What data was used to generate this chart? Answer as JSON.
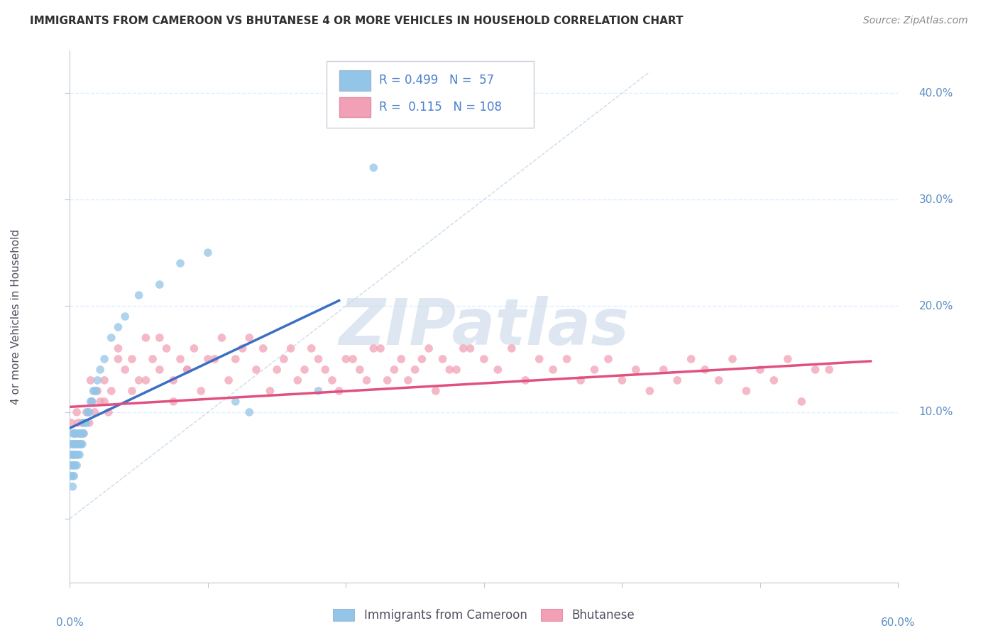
{
  "title": "IMMIGRANTS FROM CAMEROON VS BHUTANESE 4 OR MORE VEHICLES IN HOUSEHOLD CORRELATION CHART",
  "source": "Source: ZipAtlas.com",
  "ylabel_label": "4 or more Vehicles in Household",
  "xlim": [
    0.0,
    0.6
  ],
  "ylim": [
    -0.06,
    0.44
  ],
  "color_blue": "#92C5E8",
  "color_pink": "#F2A0B5",
  "color_blue_line": "#3B6FC4",
  "color_pink_line": "#E05080",
  "color_title": "#303030",
  "color_source": "#888888",
  "color_watermark": "#C8D8E8",
  "blue_scatter_x": [
    0.001,
    0.001,
    0.001,
    0.001,
    0.002,
    0.002,
    0.002,
    0.002,
    0.002,
    0.002,
    0.003,
    0.003,
    0.003,
    0.003,
    0.003,
    0.004,
    0.004,
    0.004,
    0.004,
    0.005,
    0.005,
    0.005,
    0.005,
    0.006,
    0.006,
    0.007,
    0.007,
    0.007,
    0.008,
    0.008,
    0.009,
    0.009,
    0.01,
    0.01,
    0.011,
    0.012,
    0.013,
    0.014,
    0.015,
    0.016,
    0.017,
    0.018,
    0.019,
    0.02,
    0.022,
    0.025,
    0.03,
    0.035,
    0.04,
    0.05,
    0.065,
    0.08,
    0.1,
    0.12,
    0.13,
    0.18,
    0.22
  ],
  "blue_scatter_y": [
    0.04,
    0.05,
    0.06,
    0.07,
    0.03,
    0.04,
    0.05,
    0.06,
    0.07,
    0.08,
    0.04,
    0.05,
    0.06,
    0.07,
    0.08,
    0.05,
    0.06,
    0.07,
    0.08,
    0.05,
    0.06,
    0.07,
    0.08,
    0.06,
    0.07,
    0.06,
    0.07,
    0.08,
    0.07,
    0.08,
    0.07,
    0.08,
    0.08,
    0.09,
    0.09,
    0.09,
    0.1,
    0.1,
    0.11,
    0.11,
    0.12,
    0.12,
    0.12,
    0.13,
    0.14,
    0.15,
    0.17,
    0.18,
    0.19,
    0.21,
    0.22,
    0.24,
    0.25,
    0.11,
    0.1,
    0.12,
    0.33
  ],
  "pink_scatter_x": [
    0.001,
    0.002,
    0.003,
    0.004,
    0.005,
    0.006,
    0.007,
    0.008,
    0.009,
    0.01,
    0.012,
    0.014,
    0.016,
    0.018,
    0.02,
    0.022,
    0.025,
    0.028,
    0.03,
    0.035,
    0.04,
    0.045,
    0.05,
    0.055,
    0.06,
    0.065,
    0.07,
    0.075,
    0.08,
    0.085,
    0.09,
    0.1,
    0.11,
    0.12,
    0.13,
    0.14,
    0.15,
    0.16,
    0.17,
    0.18,
    0.19,
    0.2,
    0.21,
    0.22,
    0.23,
    0.24,
    0.25,
    0.26,
    0.27,
    0.28,
    0.29,
    0.3,
    0.31,
    0.32,
    0.33,
    0.34,
    0.35,
    0.36,
    0.37,
    0.38,
    0.39,
    0.4,
    0.41,
    0.42,
    0.43,
    0.44,
    0.45,
    0.46,
    0.47,
    0.48,
    0.49,
    0.5,
    0.51,
    0.52,
    0.53,
    0.54,
    0.55,
    0.015,
    0.025,
    0.035,
    0.045,
    0.055,
    0.065,
    0.075,
    0.085,
    0.095,
    0.105,
    0.115,
    0.125,
    0.135,
    0.145,
    0.155,
    0.165,
    0.175,
    0.185,
    0.195,
    0.205,
    0.215,
    0.225,
    0.235,
    0.245,
    0.255,
    0.265,
    0.275,
    0.285
  ],
  "pink_scatter_y": [
    0.09,
    0.06,
    0.07,
    0.08,
    0.1,
    0.09,
    0.08,
    0.07,
    0.09,
    0.08,
    0.1,
    0.09,
    0.11,
    0.1,
    0.12,
    0.11,
    0.13,
    0.1,
    0.12,
    0.16,
    0.14,
    0.15,
    0.13,
    0.17,
    0.15,
    0.14,
    0.16,
    0.13,
    0.15,
    0.14,
    0.16,
    0.15,
    0.17,
    0.15,
    0.17,
    0.16,
    0.14,
    0.16,
    0.14,
    0.15,
    0.13,
    0.15,
    0.14,
    0.16,
    0.13,
    0.15,
    0.14,
    0.16,
    0.15,
    0.14,
    0.16,
    0.15,
    0.14,
    0.16,
    0.13,
    0.15,
    0.14,
    0.15,
    0.13,
    0.14,
    0.15,
    0.13,
    0.14,
    0.12,
    0.14,
    0.13,
    0.15,
    0.14,
    0.13,
    0.15,
    0.12,
    0.14,
    0.13,
    0.15,
    0.11,
    0.14,
    0.14,
    0.13,
    0.11,
    0.15,
    0.12,
    0.13,
    0.17,
    0.11,
    0.14,
    0.12,
    0.15,
    0.13,
    0.16,
    0.14,
    0.12,
    0.15,
    0.13,
    0.16,
    0.14,
    0.12,
    0.15,
    0.13,
    0.16,
    0.14,
    0.13,
    0.15,
    0.12,
    0.14,
    0.16
  ],
  "blue_trend_x": [
    0.0,
    0.195
  ],
  "blue_trend_y": [
    0.085,
    0.205
  ],
  "pink_trend_x": [
    0.0,
    0.58
  ],
  "pink_trend_y": [
    0.105,
    0.148
  ],
  "ref_line_x": [
    0.0,
    0.42
  ],
  "ref_line_y": [
    0.0,
    0.42
  ],
  "yticks": [
    0.0,
    0.1,
    0.2,
    0.3,
    0.4
  ],
  "xtick_positions": [
    0.0,
    0.1,
    0.2,
    0.3,
    0.4,
    0.5,
    0.6
  ],
  "grid_color": "#DDEEFF",
  "grid_linestyle": "--"
}
